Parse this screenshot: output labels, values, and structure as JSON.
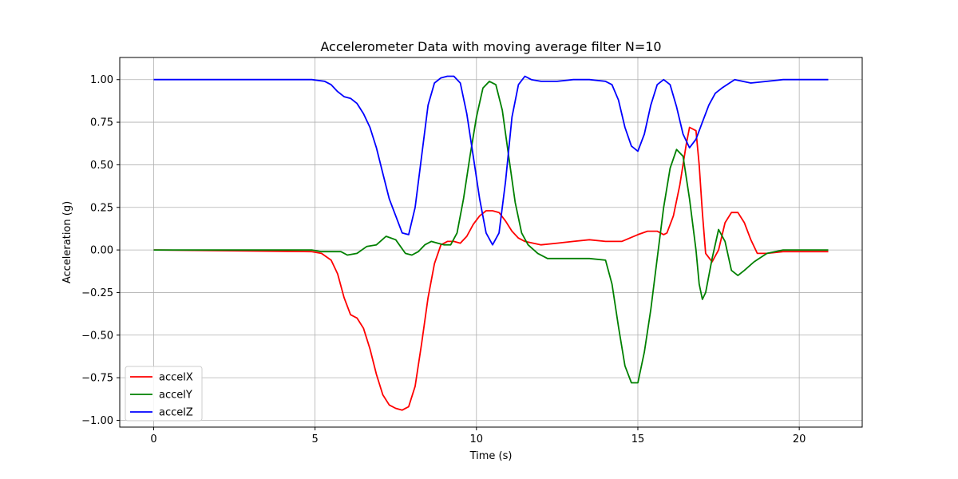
{
  "chart_data": {
    "type": "line",
    "title": "Accelerometer Data with moving average filter N=10",
    "xlabel": "Time (s)",
    "ylabel": "Acceleration (g)",
    "xlim": [
      -1.05,
      21.95
    ],
    "ylim": [
      -1.04,
      1.13
    ],
    "xticks": [
      0,
      5,
      10,
      15,
      20
    ],
    "xtick_labels": [
      "0",
      "5",
      "10",
      "15",
      "20"
    ],
    "yticks": [
      -1.0,
      -0.75,
      -0.5,
      -0.25,
      0.0,
      0.25,
      0.5,
      0.75,
      1.0
    ],
    "ytick_labels": [
      "−1.00",
      "−0.75",
      "−0.50",
      "−0.25",
      "0.00",
      "0.25",
      "0.50",
      "0.75",
      "1.00"
    ],
    "grid": true,
    "legend_position": "lower-left",
    "series": [
      {
        "name": "accelX",
        "color": "#ff0000",
        "x": [
          0,
          4.9,
          5.2,
          5.5,
          5.7,
          5.9,
          6.1,
          6.3,
          6.5,
          6.7,
          6.9,
          7.1,
          7.3,
          7.5,
          7.7,
          7.9,
          8.1,
          8.3,
          8.5,
          8.7,
          8.9,
          9.1,
          9.3,
          9.5,
          9.7,
          9.9,
          10.1,
          10.3,
          10.5,
          10.7,
          10.9,
          11.1,
          11.3,
          11.5,
          12.0,
          12.5,
          13.0,
          13.5,
          14.0,
          14.5,
          15.0,
          15.3,
          15.6,
          15.8,
          15.9,
          16.1,
          16.3,
          16.5,
          16.6,
          16.8,
          16.9,
          17.0,
          17.1,
          17.3,
          17.5,
          17.7,
          17.9,
          18.1,
          18.3,
          18.5,
          18.7,
          19.0,
          19.5,
          20.0,
          20.5,
          20.9
        ],
        "y": [
          0.0,
          -0.01,
          -0.02,
          -0.06,
          -0.14,
          -0.28,
          -0.38,
          -0.4,
          -0.46,
          -0.58,
          -0.73,
          -0.85,
          -0.91,
          -0.93,
          -0.94,
          -0.92,
          -0.8,
          -0.55,
          -0.28,
          -0.08,
          0.03,
          0.05,
          0.05,
          0.04,
          0.08,
          0.15,
          0.2,
          0.23,
          0.23,
          0.22,
          0.17,
          0.11,
          0.07,
          0.05,
          0.03,
          0.04,
          0.05,
          0.06,
          0.05,
          0.05,
          0.09,
          0.11,
          0.11,
          0.09,
          0.1,
          0.2,
          0.38,
          0.62,
          0.72,
          0.7,
          0.5,
          0.22,
          -0.02,
          -0.07,
          0.0,
          0.16,
          0.22,
          0.22,
          0.16,
          0.06,
          -0.02,
          -0.02,
          -0.01,
          -0.01,
          -0.01,
          -0.01
        ]
      },
      {
        "name": "accelY",
        "color": "#008000",
        "x": [
          0,
          4.9,
          5.2,
          5.5,
          5.8,
          6.0,
          6.3,
          6.6,
          6.9,
          7.2,
          7.5,
          7.8,
          8.0,
          8.2,
          8.4,
          8.6,
          8.8,
          9.0,
          9.2,
          9.4,
          9.6,
          9.8,
          10.0,
          10.2,
          10.4,
          10.6,
          10.8,
          11.0,
          11.2,
          11.4,
          11.6,
          11.9,
          12.2,
          12.5,
          13.0,
          13.5,
          14.0,
          14.2,
          14.4,
          14.6,
          14.8,
          15.0,
          15.2,
          15.4,
          15.6,
          15.8,
          16.0,
          16.2,
          16.4,
          16.6,
          16.8,
          16.9,
          17.0,
          17.1,
          17.3,
          17.5,
          17.7,
          17.9,
          18.1,
          18.3,
          18.6,
          19.0,
          19.5,
          20.0,
          20.9
        ],
        "y": [
          0.0,
          0.0,
          -0.01,
          -0.01,
          -0.01,
          -0.03,
          -0.02,
          0.02,
          0.03,
          0.08,
          0.06,
          -0.02,
          -0.03,
          -0.01,
          0.03,
          0.05,
          0.04,
          0.03,
          0.03,
          0.1,
          0.3,
          0.55,
          0.78,
          0.95,
          0.99,
          0.97,
          0.82,
          0.55,
          0.28,
          0.1,
          0.03,
          -0.02,
          -0.05,
          -0.05,
          -0.05,
          -0.05,
          -0.06,
          -0.2,
          -0.45,
          -0.68,
          -0.78,
          -0.78,
          -0.6,
          -0.35,
          -0.05,
          0.25,
          0.48,
          0.59,
          0.55,
          0.3,
          0.0,
          -0.2,
          -0.29,
          -0.25,
          -0.05,
          0.12,
          0.05,
          -0.12,
          -0.15,
          -0.12,
          -0.07,
          -0.02,
          0.0,
          0.0,
          0.0
        ]
      },
      {
        "name": "accelZ",
        "color": "#0000ff",
        "x": [
          0,
          3.0,
          4.9,
          5.3,
          5.5,
          5.7,
          5.9,
          6.1,
          6.3,
          6.5,
          6.7,
          6.9,
          7.1,
          7.3,
          7.5,
          7.7,
          7.9,
          8.1,
          8.3,
          8.5,
          8.7,
          8.9,
          9.1,
          9.3,
          9.5,
          9.7,
          9.9,
          10.1,
          10.3,
          10.5,
          10.7,
          10.9,
          11.1,
          11.3,
          11.5,
          11.7,
          12.0,
          12.5,
          13.0,
          13.5,
          14.0,
          14.2,
          14.4,
          14.6,
          14.8,
          15.0,
          15.2,
          15.4,
          15.6,
          15.8,
          16.0,
          16.2,
          16.4,
          16.6,
          16.8,
          17.0,
          17.2,
          17.4,
          17.6,
          18.0,
          18.5,
          19.0,
          19.5,
          20.0,
          20.9
        ],
        "y": [
          1.0,
          1.0,
          1.0,
          0.99,
          0.97,
          0.93,
          0.9,
          0.89,
          0.86,
          0.8,
          0.72,
          0.6,
          0.45,
          0.3,
          0.2,
          0.1,
          0.09,
          0.25,
          0.55,
          0.85,
          0.98,
          1.01,
          1.02,
          1.02,
          0.98,
          0.8,
          0.55,
          0.3,
          0.1,
          0.03,
          0.1,
          0.4,
          0.78,
          0.97,
          1.02,
          1.0,
          0.99,
          0.99,
          1.0,
          1.0,
          0.99,
          0.97,
          0.88,
          0.72,
          0.61,
          0.58,
          0.68,
          0.85,
          0.97,
          1.0,
          0.97,
          0.84,
          0.68,
          0.6,
          0.65,
          0.75,
          0.85,
          0.92,
          0.95,
          1.0,
          0.98,
          0.99,
          1.0,
          1.0,
          1.0
        ]
      }
    ]
  }
}
